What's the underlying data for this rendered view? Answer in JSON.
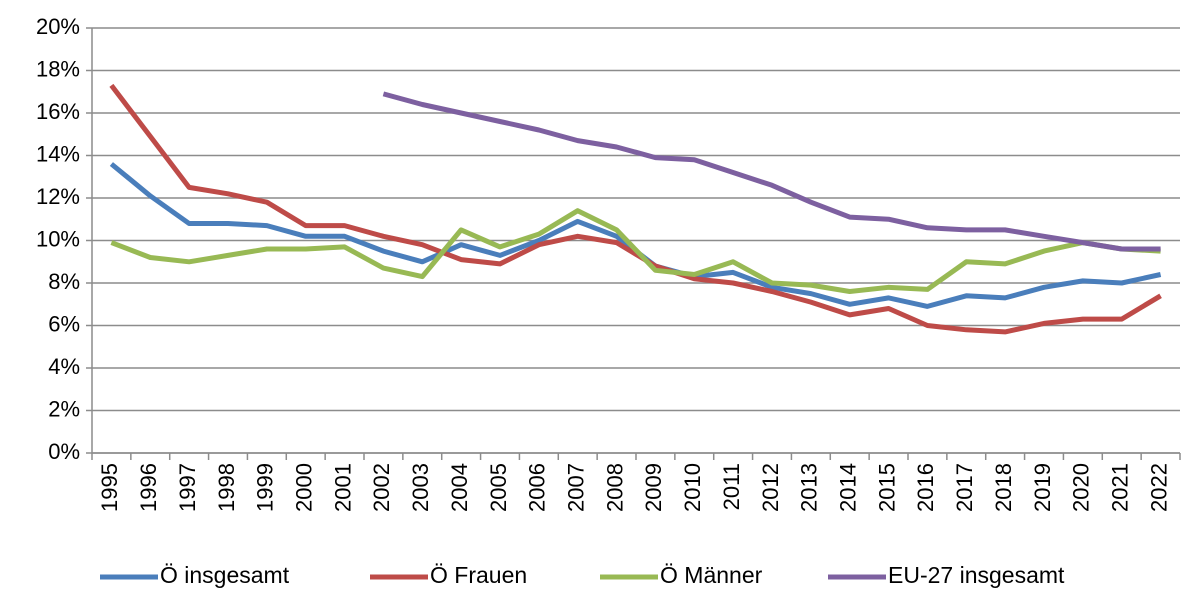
{
  "chart_data": {
    "type": "line",
    "categories": [
      "1995",
      "1996",
      "1997",
      "1998",
      "1999",
      "2000",
      "2001",
      "2002",
      "2003",
      "2004",
      "2005",
      "2006",
      "2007",
      "2008",
      "2009",
      "2010",
      "2011",
      "2012",
      "2013",
      "2014",
      "2015",
      "2016",
      "2017",
      "2018",
      "2019",
      "2020",
      "2021",
      "2022"
    ],
    "series": [
      {
        "name": "Ö insgesamt",
        "color": "#4a7ebb",
        "values": [
          13.6,
          12.1,
          10.8,
          10.8,
          10.7,
          10.2,
          10.2,
          9.5,
          9.0,
          9.8,
          9.3,
          10.0,
          10.9,
          10.2,
          8.8,
          8.3,
          8.5,
          7.8,
          7.5,
          7.0,
          7.3,
          6.9,
          7.4,
          7.3,
          7.8,
          8.1,
          8.0,
          8.4
        ]
      },
      {
        "name": "Ö Frauen",
        "color": "#be4b48",
        "values": [
          17.3,
          14.9,
          12.5,
          12.2,
          11.8,
          10.7,
          10.7,
          10.2,
          9.8,
          9.1,
          8.9,
          9.8,
          10.2,
          9.9,
          8.8,
          8.2,
          8.0,
          7.6,
          7.1,
          6.5,
          6.8,
          6.0,
          5.8,
          5.7,
          6.1,
          6.3,
          6.3,
          7.4
        ]
      },
      {
        "name": "Ö Männer",
        "color": "#98b954",
        "values": [
          9.9,
          9.2,
          9.0,
          9.3,
          9.6,
          9.6,
          9.7,
          8.7,
          8.3,
          10.5,
          9.7,
          10.3,
          11.4,
          10.5,
          8.6,
          8.4,
          9.0,
          8.0,
          7.9,
          7.6,
          7.8,
          7.7,
          9.0,
          8.9,
          9.5,
          9.9,
          9.6,
          9.5
        ]
      },
      {
        "name": "EU-27 insgesamt",
        "color": "#7d60a0",
        "values": [
          null,
          null,
          null,
          null,
          null,
          null,
          null,
          16.9,
          16.4,
          16.0,
          15.6,
          15.2,
          14.7,
          14.4,
          13.9,
          13.8,
          13.2,
          12.6,
          11.8,
          11.1,
          11.0,
          10.6,
          10.5,
          10.5,
          10.2,
          9.9,
          9.6,
          9.6
        ]
      }
    ],
    "ylim": [
      0,
      20
    ],
    "yticks": [
      {
        "value": 0,
        "label": "0%"
      },
      {
        "value": 2,
        "label": "2%"
      },
      {
        "value": 4,
        "label": "4%"
      },
      {
        "value": 6,
        "label": "6%"
      },
      {
        "value": 8,
        "label": "8%"
      },
      {
        "value": 10,
        "label": "10%"
      },
      {
        "value": 12,
        "label": "12%"
      },
      {
        "value": 14,
        "label": "14%"
      },
      {
        "value": 16,
        "label": "16%"
      },
      {
        "value": 18,
        "label": "18%"
      },
      {
        "value": 20,
        "label": "20%"
      }
    ],
    "grid": true,
    "legend": "bottom"
  }
}
